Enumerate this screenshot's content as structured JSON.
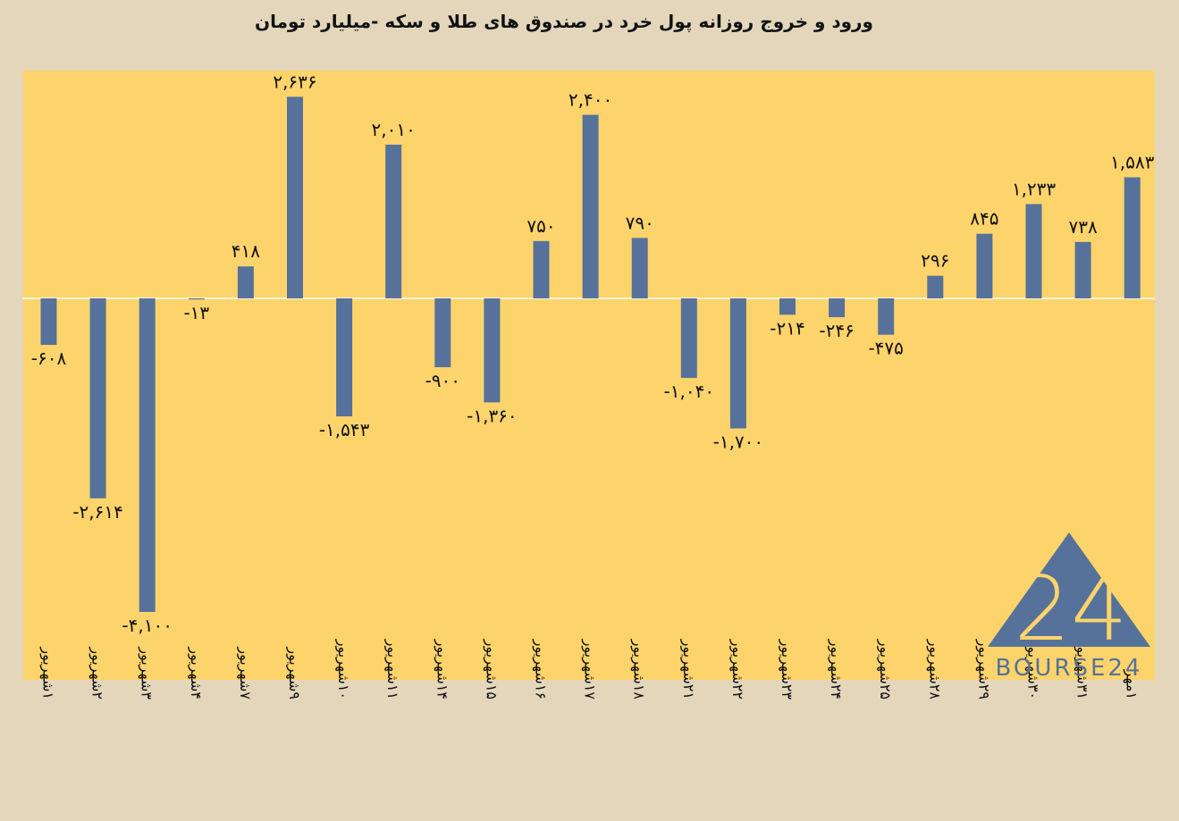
{
  "chart_data": {
    "type": "bar",
    "title": "ورود و خروج روزانه پول خرد در صندوق های طلا و سکه -میلیارد تومان",
    "categories": [
      "۱شهریور",
      "۲شهریور",
      "۳شهریور",
      "۴شهریور",
      "۷شهریور",
      "۹شهریور",
      "۱۰شهریور",
      "۱۱شهریور",
      "۱۴شهریور",
      "۱۵شهریور",
      "۱۶شهریور",
      "۱۷شهریور",
      "۱۸شهریور",
      "۲۱شهریور",
      "۲۲شهریور",
      "۲۳شهریور",
      "۲۴شهریور",
      "۲۵شهریور",
      "۲۸شهریور",
      "۲۹شهریور",
      "۳۰شهریور",
      "۳۱شهریور",
      "۱مهر"
    ],
    "values": [
      -608,
      -2614,
      -4100,
      -13,
      418,
      2636,
      -1543,
      2010,
      -900,
      -1360,
      750,
      2400,
      790,
      -1040,
      -1700,
      -214,
      -246,
      -475,
      296,
      845,
      1233,
      738,
      1583
    ],
    "data_labels": [
      "-۶۰۸",
      "-۲,۶۱۴",
      "-۴,۱۰۰",
      "-۱۳",
      "۴۱۸",
      "۲,۶۳۶",
      "-۱,۵۴۳",
      "۲,۰۱۰",
      "-۹۰۰",
      "-۱,۳۶۰",
      "۷۵۰",
      "۲,۴۰۰",
      "۷۹۰",
      "-۱,۰۴۰",
      "-۱,۷۰۰",
      "-۲۱۴",
      "-۲۴۶",
      "-۴۷۵",
      "۲۹۶",
      "۸۴۵",
      "۱,۲۳۳",
      "۷۳۸",
      "۱,۵۸۳"
    ],
    "xlabel": "",
    "ylabel": "",
    "grid": false,
    "legend": "none",
    "bar_color": "#56729a",
    "plot_background": "#fdd46b",
    "page_background": "#e3d6bb"
  },
  "logo": {
    "mark": "24",
    "text": "BOURSE24",
    "color": "#56729a"
  }
}
